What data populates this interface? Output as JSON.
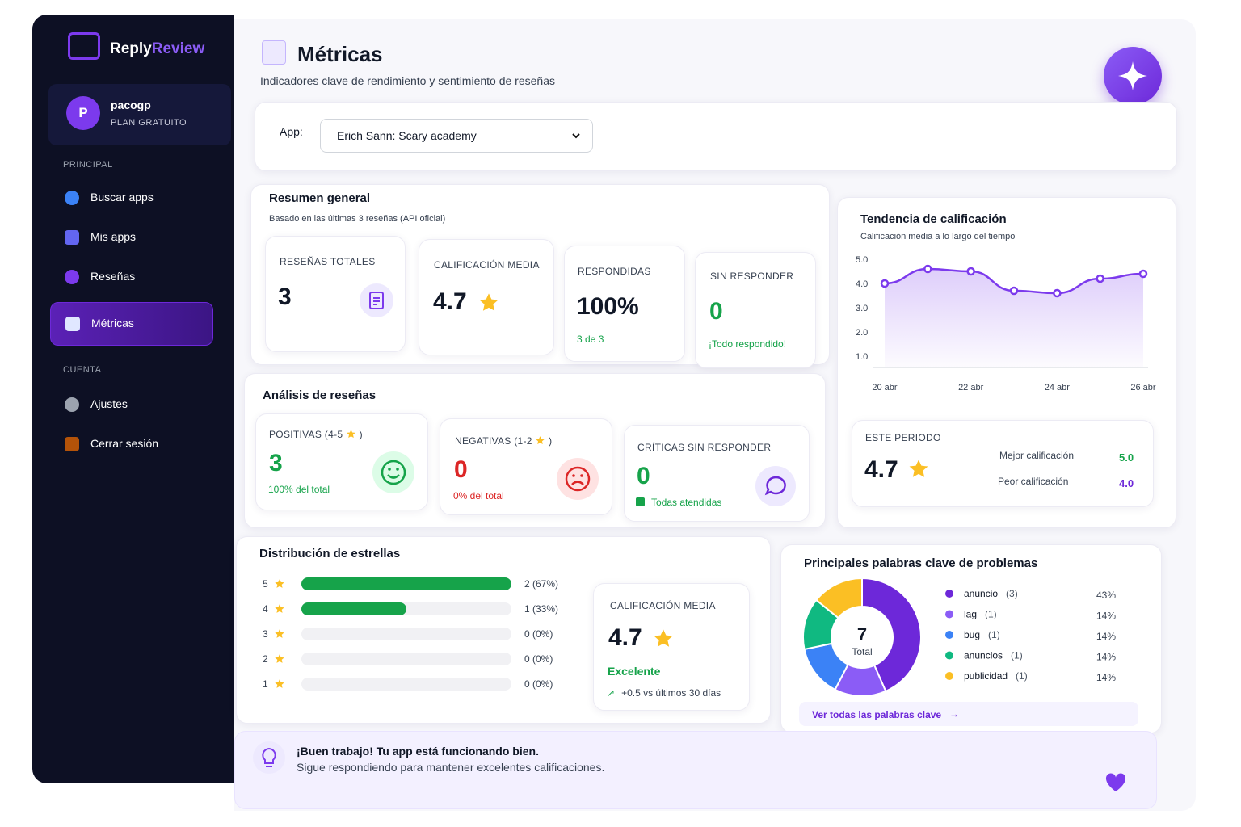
{
  "sidebar": {
    "brand": {
      "first": "Reply",
      "second": "Review"
    },
    "user": {
      "avatar": "P",
      "name": "pacogp",
      "plan": "PLAN GRATUITO"
    },
    "sections": [
      {
        "title": "PRINCIPAL",
        "items": [
          "Buscar apps",
          "Mis apps",
          "Reseñas",
          "Métricas"
        ]
      },
      {
        "title": "CUENTA",
        "items": [
          "Ajustes",
          "Cerrar sesión"
        ]
      }
    ]
  },
  "header": {
    "title": "Métricas",
    "subtitle": "Indicadores clave de rendimiento y sentimiento de reseñas"
  },
  "app_selector": {
    "label": "App:",
    "value": "Erich Sann: Scary academy"
  },
  "summary": {
    "title": "Resumen general",
    "subtitle": "Basado en las últimas 3 reseñas (API oficial)",
    "cards": [
      {
        "label": "RESEÑAS TOTALES",
        "value": "3"
      },
      {
        "label": "CALIFICACIÓN MEDIA",
        "value": "4.7"
      },
      {
        "label": "RESPONDIDAS",
        "value": "100%",
        "note": "3 de 3"
      },
      {
        "label": "SIN RESPONDER",
        "value": "0",
        "note": "¡Todo respondido!"
      }
    ]
  },
  "analysis": {
    "title": "Análisis de reseñas",
    "cards": [
      {
        "label": "POSITIVAS (4-5",
        "label_end": ")",
        "value": "3",
        "note": "100% del total"
      },
      {
        "label": "NEGATIVAS (1-2",
        "label_end": ")",
        "value": "0",
        "note": "0% del total"
      },
      {
        "label": "CRÍTICAS SIN RESPONDER",
        "value": "0",
        "note": "Todas atendidas"
      }
    ]
  },
  "trend": {
    "type": "line",
    "title": "Tendencia de calificación",
    "subtitle": "Calificación media a lo largo del tiempo",
    "categories": [
      "20 abr",
      null,
      "22 abr",
      null,
      "24 abr",
      null,
      "26 abr"
    ],
    "values": [
      4.0,
      4.6,
      4.5,
      3.7,
      3.6,
      4.2,
      4.4
    ],
    "color": "#7c3aed",
    "ylim": [
      1,
      5
    ],
    "yticks": [
      {
        "value": 5,
        "label": "5.0"
      },
      {
        "value": 4,
        "label": "4.0"
      },
      {
        "value": 3,
        "label": "3.0"
      },
      {
        "value": 2,
        "label": "2.0"
      },
      {
        "value": 1,
        "label": "1.0"
      }
    ]
  },
  "period": {
    "label": "ESTE PERIODO",
    "value": "4.7",
    "best_label": "Mejor calificación",
    "best": "5.0",
    "worst_label": "Peor calificación",
    "worst": "4.0"
  },
  "distribution": {
    "type": "bar",
    "title": "Distribución de estrellas",
    "categories": [
      "5",
      "4",
      "3",
      "2",
      "1"
    ],
    "values": [
      2,
      1,
      0,
      0,
      0
    ],
    "value_labels": [
      "2 (67%)",
      "1 (33%)",
      "0 (0%)",
      "0 (0%)",
      "0 (0%)"
    ],
    "color": "#16a34a",
    "xlim": [
      0,
      2
    ]
  },
  "average": {
    "label": "CALIFICACIÓN MEDIA",
    "value": "4.7",
    "rating": "Excelente",
    "trend": "+0.5 vs últimos 30 días"
  },
  "keywords": {
    "type": "pie",
    "title": "Principales palabras clave de problemas",
    "total": "7",
    "total_label": "Total",
    "categories": [
      "anuncio",
      "lag",
      "bug",
      "anuncios",
      "publicidad"
    ],
    "count_labels": [
      "(3)",
      "(1)",
      "(1)",
      "(1)",
      "(1)"
    ],
    "values": [
      43,
      14,
      14,
      14,
      14
    ],
    "value_labels": [
      "43%",
      "14%",
      "14%",
      "14%",
      "14%"
    ],
    "colors": [
      "#6d28d9",
      "#8b5cf6",
      "#3b82f6",
      "#10b981",
      "#fbbf24"
    ],
    "link": "Ver todas las palabras clave"
  },
  "banner": {
    "title": "¡Buen trabajo! Tu app está funcionando bien.",
    "text": "Sigue respondiendo para mantener excelentes calificaciones."
  }
}
